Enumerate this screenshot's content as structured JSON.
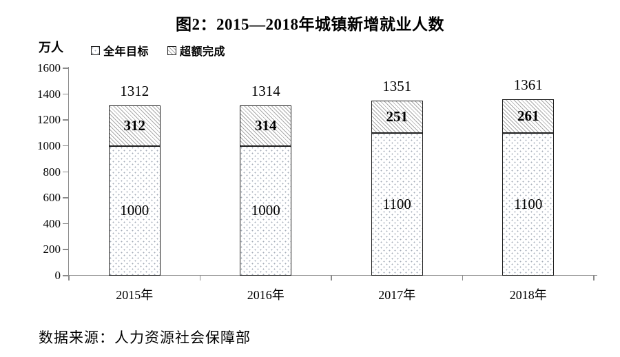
{
  "chart_data": {
    "type": "bar",
    "stacked": true,
    "title": "图2：2015—2018年城镇新增就业人数",
    "unit_label": "万人",
    "categories": [
      "2015年",
      "2016年",
      "2017年",
      "2018年"
    ],
    "series": [
      {
        "name": "全年目标",
        "values": [
          1000,
          1000,
          1100,
          1100
        ],
        "pattern": "dots"
      },
      {
        "name": "超额完成",
        "values": [
          312,
          314,
          251,
          261
        ],
        "pattern": "hatch"
      }
    ],
    "totals": [
      1312,
      1314,
      1351,
      1361
    ],
    "ylabel": "万人",
    "ylim": [
      0,
      1600
    ],
    "ytick_step": 200,
    "yticks": [
      0,
      200,
      400,
      600,
      800,
      1000,
      1200,
      1400,
      1600
    ],
    "grid": false,
    "legend_position": "top-left",
    "source": "数据来源：人力资源社会保障部",
    "colors": {
      "axis": "#8a8a8a",
      "bar_border": "#1c1c1c",
      "hatch_line": "#a8a8a8",
      "dot": "#a4acb8",
      "text": "#000000"
    }
  }
}
